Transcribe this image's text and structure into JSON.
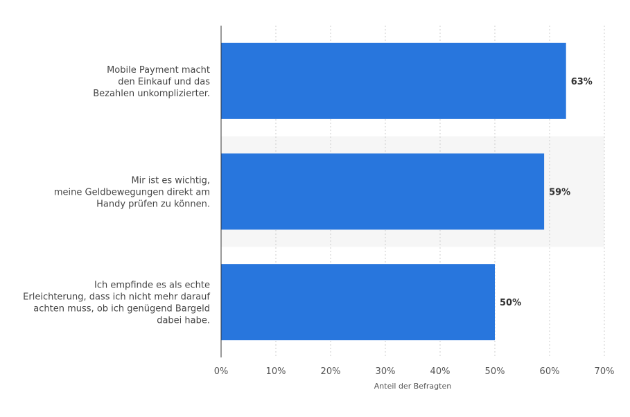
{
  "chart_data": {
    "type": "bar",
    "orientation": "horizontal",
    "categories": [
      [
        "Mobile Payment macht",
        "den Einkauf und das",
        "Bezahlen unkomplizierter."
      ],
      [
        "Mir ist es wichtig,",
        "meine Geldbewegungen direkt am",
        "Handy prüfen zu können."
      ],
      [
        "Ich empfinde es als echte",
        "Erleichterung, dass ich nicht mehr darauf",
        "achten muss, ob ich genügend Bargeld",
        "dabei habe."
      ]
    ],
    "values": [
      63,
      59,
      50
    ],
    "data_labels": [
      "63%",
      "59%",
      "50%"
    ],
    "xlabel": "Anteil der Befragten",
    "xlim": [
      0,
      70
    ],
    "xticks": [
      0,
      10,
      20,
      30,
      40,
      50,
      60,
      70
    ],
    "xtick_labels": [
      "0%",
      "10%",
      "20%",
      "30%",
      "40%",
      "50%",
      "60%",
      "70%"
    ],
    "grid": true,
    "bar_color": "#2876dd"
  }
}
